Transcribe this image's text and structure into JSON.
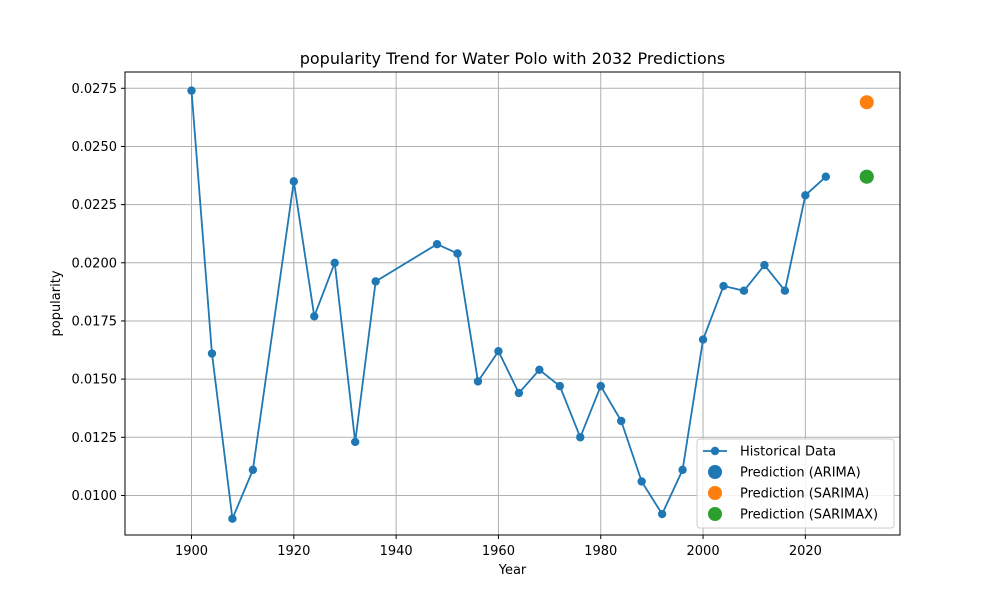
{
  "chart_data": {
    "type": "line",
    "title": "popularity Trend for Water Polo with 2032 Predictions",
    "xlabel": "Year",
    "ylabel": "popularity",
    "xlim": [
      1887,
      2038.5
    ],
    "ylim": [
      0.0083,
      0.0282
    ],
    "x_ticks": [
      1900,
      1920,
      1940,
      1960,
      1980,
      2000,
      2020
    ],
    "x_tick_labels": [
      "1900",
      "1920",
      "1940",
      "1960",
      "1980",
      "2000",
      "2020"
    ],
    "y_ticks": [
      0.01,
      0.0125,
      0.015,
      0.0175,
      0.02,
      0.0225,
      0.025,
      0.0275
    ],
    "y_tick_labels": [
      "0.0100",
      "0.0125",
      "0.0150",
      "0.0175",
      "0.0200",
      "0.0225",
      "0.0250",
      "0.0275"
    ],
    "grid": true,
    "legend_position": "lower-right",
    "series": [
      {
        "name": "Historical Data",
        "kind": "line-marker",
        "color": "#1f77b4",
        "x": [
          1900,
          1904,
          1908,
          1912,
          1920,
          1924,
          1928,
          1932,
          1936,
          1948,
          1952,
          1956,
          1960,
          1964,
          1968,
          1972,
          1976,
          1980,
          1984,
          1988,
          1992,
          1996,
          2000,
          2004,
          2008,
          2012,
          2016,
          2020,
          2024
        ],
        "y": [
          0.0274,
          0.0161,
          0.009,
          0.0111,
          0.0235,
          0.0177,
          0.02,
          0.0123,
          0.0192,
          0.0208,
          0.0204,
          0.0149,
          0.0162,
          0.0144,
          0.0154,
          0.0147,
          0.0125,
          0.0147,
          0.0132,
          0.0106,
          0.0092,
          0.0111,
          0.0167,
          0.019,
          0.0188,
          0.0199,
          0.0188,
          0.0229,
          0.0237
        ]
      },
      {
        "name": "Prediction (ARIMA)",
        "kind": "point",
        "color": "#1f77b4",
        "x": [
          2032
        ],
        "y": [
          0.0237
        ]
      },
      {
        "name": "Prediction (SARIMA)",
        "kind": "point",
        "color": "#ff7f0e",
        "x": [
          2032
        ],
        "y": [
          0.0269
        ]
      },
      {
        "name": "Prediction (SARIMAX)",
        "kind": "point",
        "color": "#2ca02c",
        "x": [
          2032
        ],
        "y": [
          0.0237
        ]
      }
    ]
  }
}
